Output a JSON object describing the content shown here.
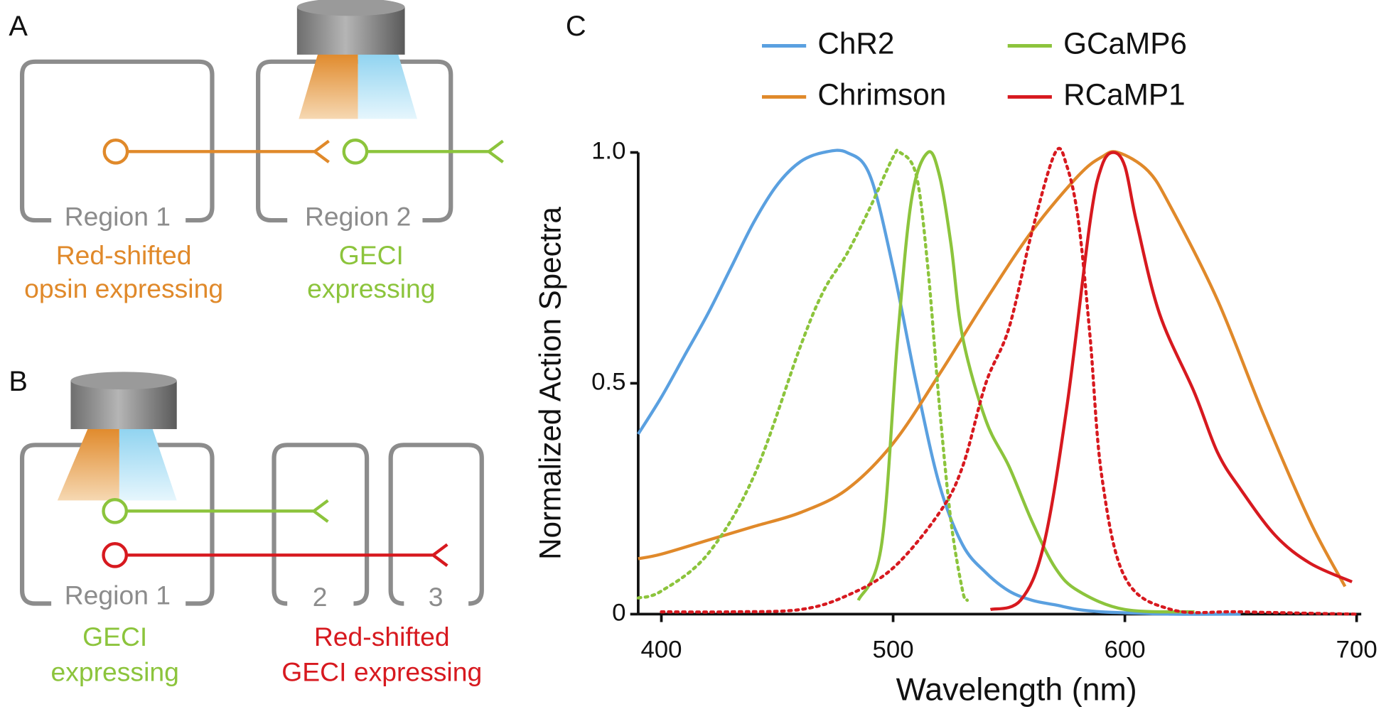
{
  "panel_labels": [
    "A",
    "B",
    "C"
  ],
  "diagram_a": {
    "regions": [
      "Region 1",
      "Region 2"
    ],
    "captions": [
      [
        "Red-shifted",
        "opsin expressing"
      ],
      [
        "GECI",
        "expressing"
      ]
    ]
  },
  "diagram_b": {
    "regions": [
      "Region 1",
      "2",
      "3"
    ],
    "captions": [
      [
        "GECI",
        "expressing"
      ],
      [
        "Red-shifted",
        "GECI expressing"
      ]
    ]
  },
  "chart_data": {
    "type": "line",
    "x_label": "Wavelength (nm)",
    "y_label": "Normalized Action Spectra",
    "xlim": [
      390,
      702
    ],
    "ylim": [
      0,
      1
    ],
    "xticks": [
      400,
      500,
      600,
      700
    ],
    "yticks": [
      0,
      0.5,
      {
        "value": 1,
        "label": "1.0"
      }
    ],
    "series": [
      {
        "name": "ChR2",
        "color": "#5aa0e0",
        "x": [
          390,
          400,
          410,
          420,
          430,
          440,
          450,
          460,
          470,
          480,
          490,
          500,
          510,
          520,
          530,
          540,
          550,
          560,
          570,
          580,
          590,
          600,
          620,
          650
        ],
        "values": [
          0.39,
          0.47,
          0.56,
          0.65,
          0.75,
          0.85,
          0.93,
          0.98,
          1.0,
          1.0,
          0.95,
          0.75,
          0.5,
          0.28,
          0.15,
          0.09,
          0.05,
          0.03,
          0.02,
          0.01,
          0.005,
          0.003,
          0,
          0
        ]
      },
      {
        "name": "Chrimson",
        "color": "#e0892a",
        "x": [
          390,
          400,
          420,
          440,
          460,
          480,
          500,
          520,
          540,
          560,
          580,
          590,
          597,
          610,
          620,
          640,
          660,
          680,
          695
        ],
        "values": [
          0.12,
          0.13,
          0.16,
          0.19,
          0.22,
          0.27,
          0.37,
          0.52,
          0.68,
          0.83,
          0.95,
          0.99,
          1.0,
          0.96,
          0.88,
          0.68,
          0.43,
          0.2,
          0.06
        ]
      },
      {
        "name": "GCaMP6",
        "color": "#8cc43c",
        "x": [
          485,
          495,
          502,
          508,
          515,
          520,
          525,
          530,
          540,
          550,
          560,
          570,
          580,
          600,
          630
        ],
        "values": [
          0.03,
          0.15,
          0.6,
          0.9,
          1.0,
          0.95,
          0.8,
          0.6,
          0.42,
          0.32,
          0.2,
          0.1,
          0.05,
          0.01,
          0.005
        ]
      },
      {
        "color": "#8cc43c",
        "dash": true,
        "x": [
          390,
          400,
          420,
          440,
          460,
          470,
          480,
          490,
          500,
          503,
          510,
          515,
          520,
          525,
          530,
          532
        ],
        "values": [
          0.035,
          0.05,
          0.13,
          0.3,
          0.58,
          0.7,
          0.78,
          0.88,
          0.99,
          1.0,
          0.95,
          0.75,
          0.45,
          0.2,
          0.05,
          0.03
        ]
      },
      {
        "name": "RCaMP1",
        "color": "#d7191f",
        "x": [
          542,
          555,
          565,
          575,
          585,
          590,
          595,
          600,
          605,
          615,
          630,
          640,
          650,
          665,
          680,
          698
        ],
        "values": [
          0.01,
          0.03,
          0.15,
          0.45,
          0.85,
          0.97,
          1.0,
          0.97,
          0.85,
          0.65,
          0.48,
          0.35,
          0.27,
          0.17,
          0.11,
          0.07
        ]
      },
      {
        "color": "#d7191f",
        "dash": true,
        "x": [
          400,
          430,
          460,
          480,
          500,
          520,
          530,
          540,
          550,
          560,
          570,
          575,
          580,
          585,
          590,
          600,
          620,
          650,
          700
        ],
        "values": [
          0.005,
          0.005,
          0.01,
          0.04,
          0.1,
          0.22,
          0.32,
          0.5,
          0.62,
          0.83,
          1.0,
          0.97,
          0.85,
          0.6,
          0.3,
          0.08,
          0.01,
          0.005,
          0
        ]
      }
    ]
  }
}
